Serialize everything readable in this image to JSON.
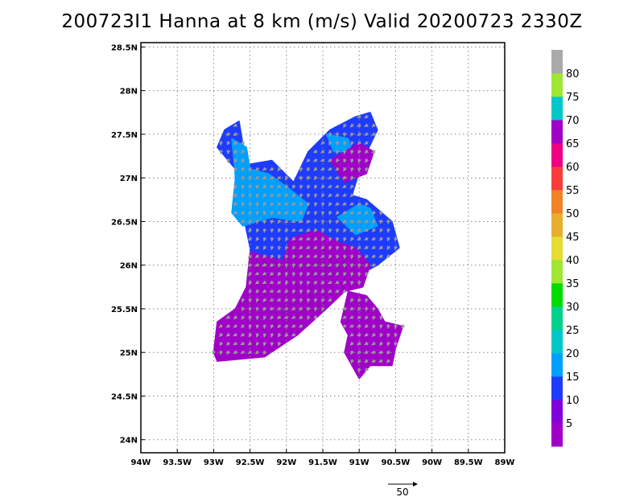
{
  "title": "200723I1 Hanna at 8 km (m/s) Valid 20200723 2330Z",
  "map": {
    "lon_range": [
      -94,
      -89
    ],
    "lat_range": [
      23.85,
      28.55
    ],
    "grid": true,
    "lon_ticks": [
      {
        "value": -94,
        "label": "94W"
      },
      {
        "value": -93.5,
        "label": "93.5W"
      },
      {
        "value": -93,
        "label": "93W"
      },
      {
        "value": -92.5,
        "label": "92.5W"
      },
      {
        "value": -92,
        "label": "92W"
      },
      {
        "value": -91.5,
        "label": "91.5W"
      },
      {
        "value": -91,
        "label": "91W"
      },
      {
        "value": -90.5,
        "label": "90.5W"
      },
      {
        "value": -90,
        "label": "90W"
      },
      {
        "value": -89.5,
        "label": "89.5W"
      },
      {
        "value": -89,
        "label": "89W"
      }
    ],
    "lat_ticks": [
      {
        "value": 24,
        "label": "24N"
      },
      {
        "value": 24.5,
        "label": "24.5N"
      },
      {
        "value": 25,
        "label": "25N"
      },
      {
        "value": 25.5,
        "label": "25.5N"
      },
      {
        "value": 26,
        "label": "26N"
      },
      {
        "value": 26.5,
        "label": "26.5N"
      },
      {
        "value": 27,
        "label": "27N"
      },
      {
        "value": 27.5,
        "label": "27.5N"
      },
      {
        "value": 28,
        "label": "28N"
      },
      {
        "value": 28.5,
        "label": "28.5N"
      }
    ],
    "wind_vectors": "gray",
    "reference_vector": {
      "label": "50"
    }
  },
  "colorbar": {
    "colors": [
      "#a000c8",
      "#8200dc",
      "#1e3cff",
      "#00a0ff",
      "#00c8c8",
      "#00d28c",
      "#00dc00",
      "#a0e632",
      "#e6dc32",
      "#e6af2d",
      "#f08228",
      "#fa3c3c",
      "#f00082",
      "#a000c8",
      "#00c8c8",
      "#a0e632",
      "#aaaaaa"
    ],
    "labels": [
      "5",
      "10",
      "15",
      "20",
      "25",
      "30",
      "35",
      "40",
      "45",
      "50",
      "55",
      "60",
      "65",
      "70",
      "75",
      "80"
    ]
  },
  "regions": [
    {
      "name": "northwest-lobe",
      "color": "#1e3cff",
      "poly": [
        [
          -92.85,
          27.55
        ],
        [
          -92.65,
          27.65
        ],
        [
          -92.55,
          27.15
        ],
        [
          -92.2,
          27.2
        ],
        [
          -91.9,
          26.95
        ],
        [
          -91.7,
          27.3
        ],
        [
          -91.4,
          27.55
        ],
        [
          -91.05,
          27.7
        ],
        [
          -90.85,
          27.75
        ],
        [
          -90.75,
          27.55
        ],
        [
          -90.95,
          27.2
        ],
        [
          -91.1,
          26.8
        ],
        [
          -90.9,
          26.75
        ],
        [
          -90.55,
          26.5
        ],
        [
          -90.45,
          26.2
        ],
        [
          -90.75,
          26.0
        ],
        [
          -91.2,
          25.8
        ],
        [
          -91.65,
          25.55
        ],
        [
          -92.0,
          25.35
        ],
        [
          -92.3,
          25.4
        ],
        [
          -92.45,
          25.6
        ],
        [
          -92.5,
          26.2
        ],
        [
          -92.65,
          26.8
        ],
        [
          -92.7,
          27.1
        ],
        [
          -92.95,
          27.35
        ]
      ]
    },
    {
      "name": "west-cyan",
      "color": "#00a0ff",
      "poly": [
        [
          -92.75,
          27.45
        ],
        [
          -92.55,
          27.35
        ],
        [
          -92.5,
          27.1
        ],
        [
          -92.25,
          27.05
        ],
        [
          -92.0,
          26.9
        ],
        [
          -91.7,
          26.7
        ],
        [
          -91.8,
          26.5
        ],
        [
          -92.2,
          26.55
        ],
        [
          -92.6,
          26.45
        ],
        [
          -92.75,
          26.6
        ],
        [
          -92.7,
          27.0
        ]
      ]
    },
    {
      "name": "northeast-cyan",
      "color": "#00a0ff",
      "poly": [
        [
          -91.45,
          27.5
        ],
        [
          -91.15,
          27.45
        ],
        [
          -91.1,
          27.3
        ],
        [
          -91.35,
          27.3
        ]
      ]
    },
    {
      "name": "east-cyan",
      "color": "#00a0ff",
      "poly": [
        [
          -91.3,
          26.55
        ],
        [
          -91.0,
          26.7
        ],
        [
          -90.85,
          26.65
        ],
        [
          -90.75,
          26.45
        ],
        [
          -91.05,
          26.35
        ]
      ]
    },
    {
      "name": "core-purple",
      "color": "#a000c8",
      "poly": [
        [
          -92.5,
          26.15
        ],
        [
          -92.05,
          26.05
        ],
        [
          -91.95,
          26.3
        ],
        [
          -91.6,
          26.4
        ],
        [
          -91.25,
          26.25
        ],
        [
          -91.05,
          26.2
        ],
        [
          -90.85,
          26.0
        ],
        [
          -90.95,
          25.75
        ],
        [
          -91.2,
          25.7
        ],
        [
          -91.45,
          25.5
        ],
        [
          -91.85,
          25.2
        ],
        [
          -92.3,
          24.95
        ],
        [
          -92.95,
          24.9
        ],
        [
          -93.0,
          25.0
        ],
        [
          -92.95,
          25.35
        ],
        [
          -92.7,
          25.5
        ],
        [
          -92.55,
          25.75
        ]
      ]
    },
    {
      "name": "southeast-purple",
      "color": "#a000c8",
      "poly": [
        [
          -91.15,
          25.7
        ],
        [
          -90.9,
          25.65
        ],
        [
          -90.75,
          25.5
        ],
        [
          -90.65,
          25.35
        ],
        [
          -90.4,
          25.3
        ],
        [
          -90.5,
          25.05
        ],
        [
          -90.55,
          24.85
        ],
        [
          -90.85,
          24.85
        ],
        [
          -91.0,
          24.7
        ],
        [
          -91.1,
          24.85
        ],
        [
          -91.2,
          25.0
        ],
        [
          -91.15,
          25.2
        ],
        [
          -91.25,
          25.35
        ]
      ]
    },
    {
      "name": "northeast-purple",
      "color": "#a000c8",
      "poly": [
        [
          -91.4,
          27.2
        ],
        [
          -91.0,
          27.4
        ],
        [
          -90.8,
          27.3
        ],
        [
          -90.9,
          27.05
        ],
        [
          -91.2,
          26.95
        ]
      ]
    }
  ]
}
